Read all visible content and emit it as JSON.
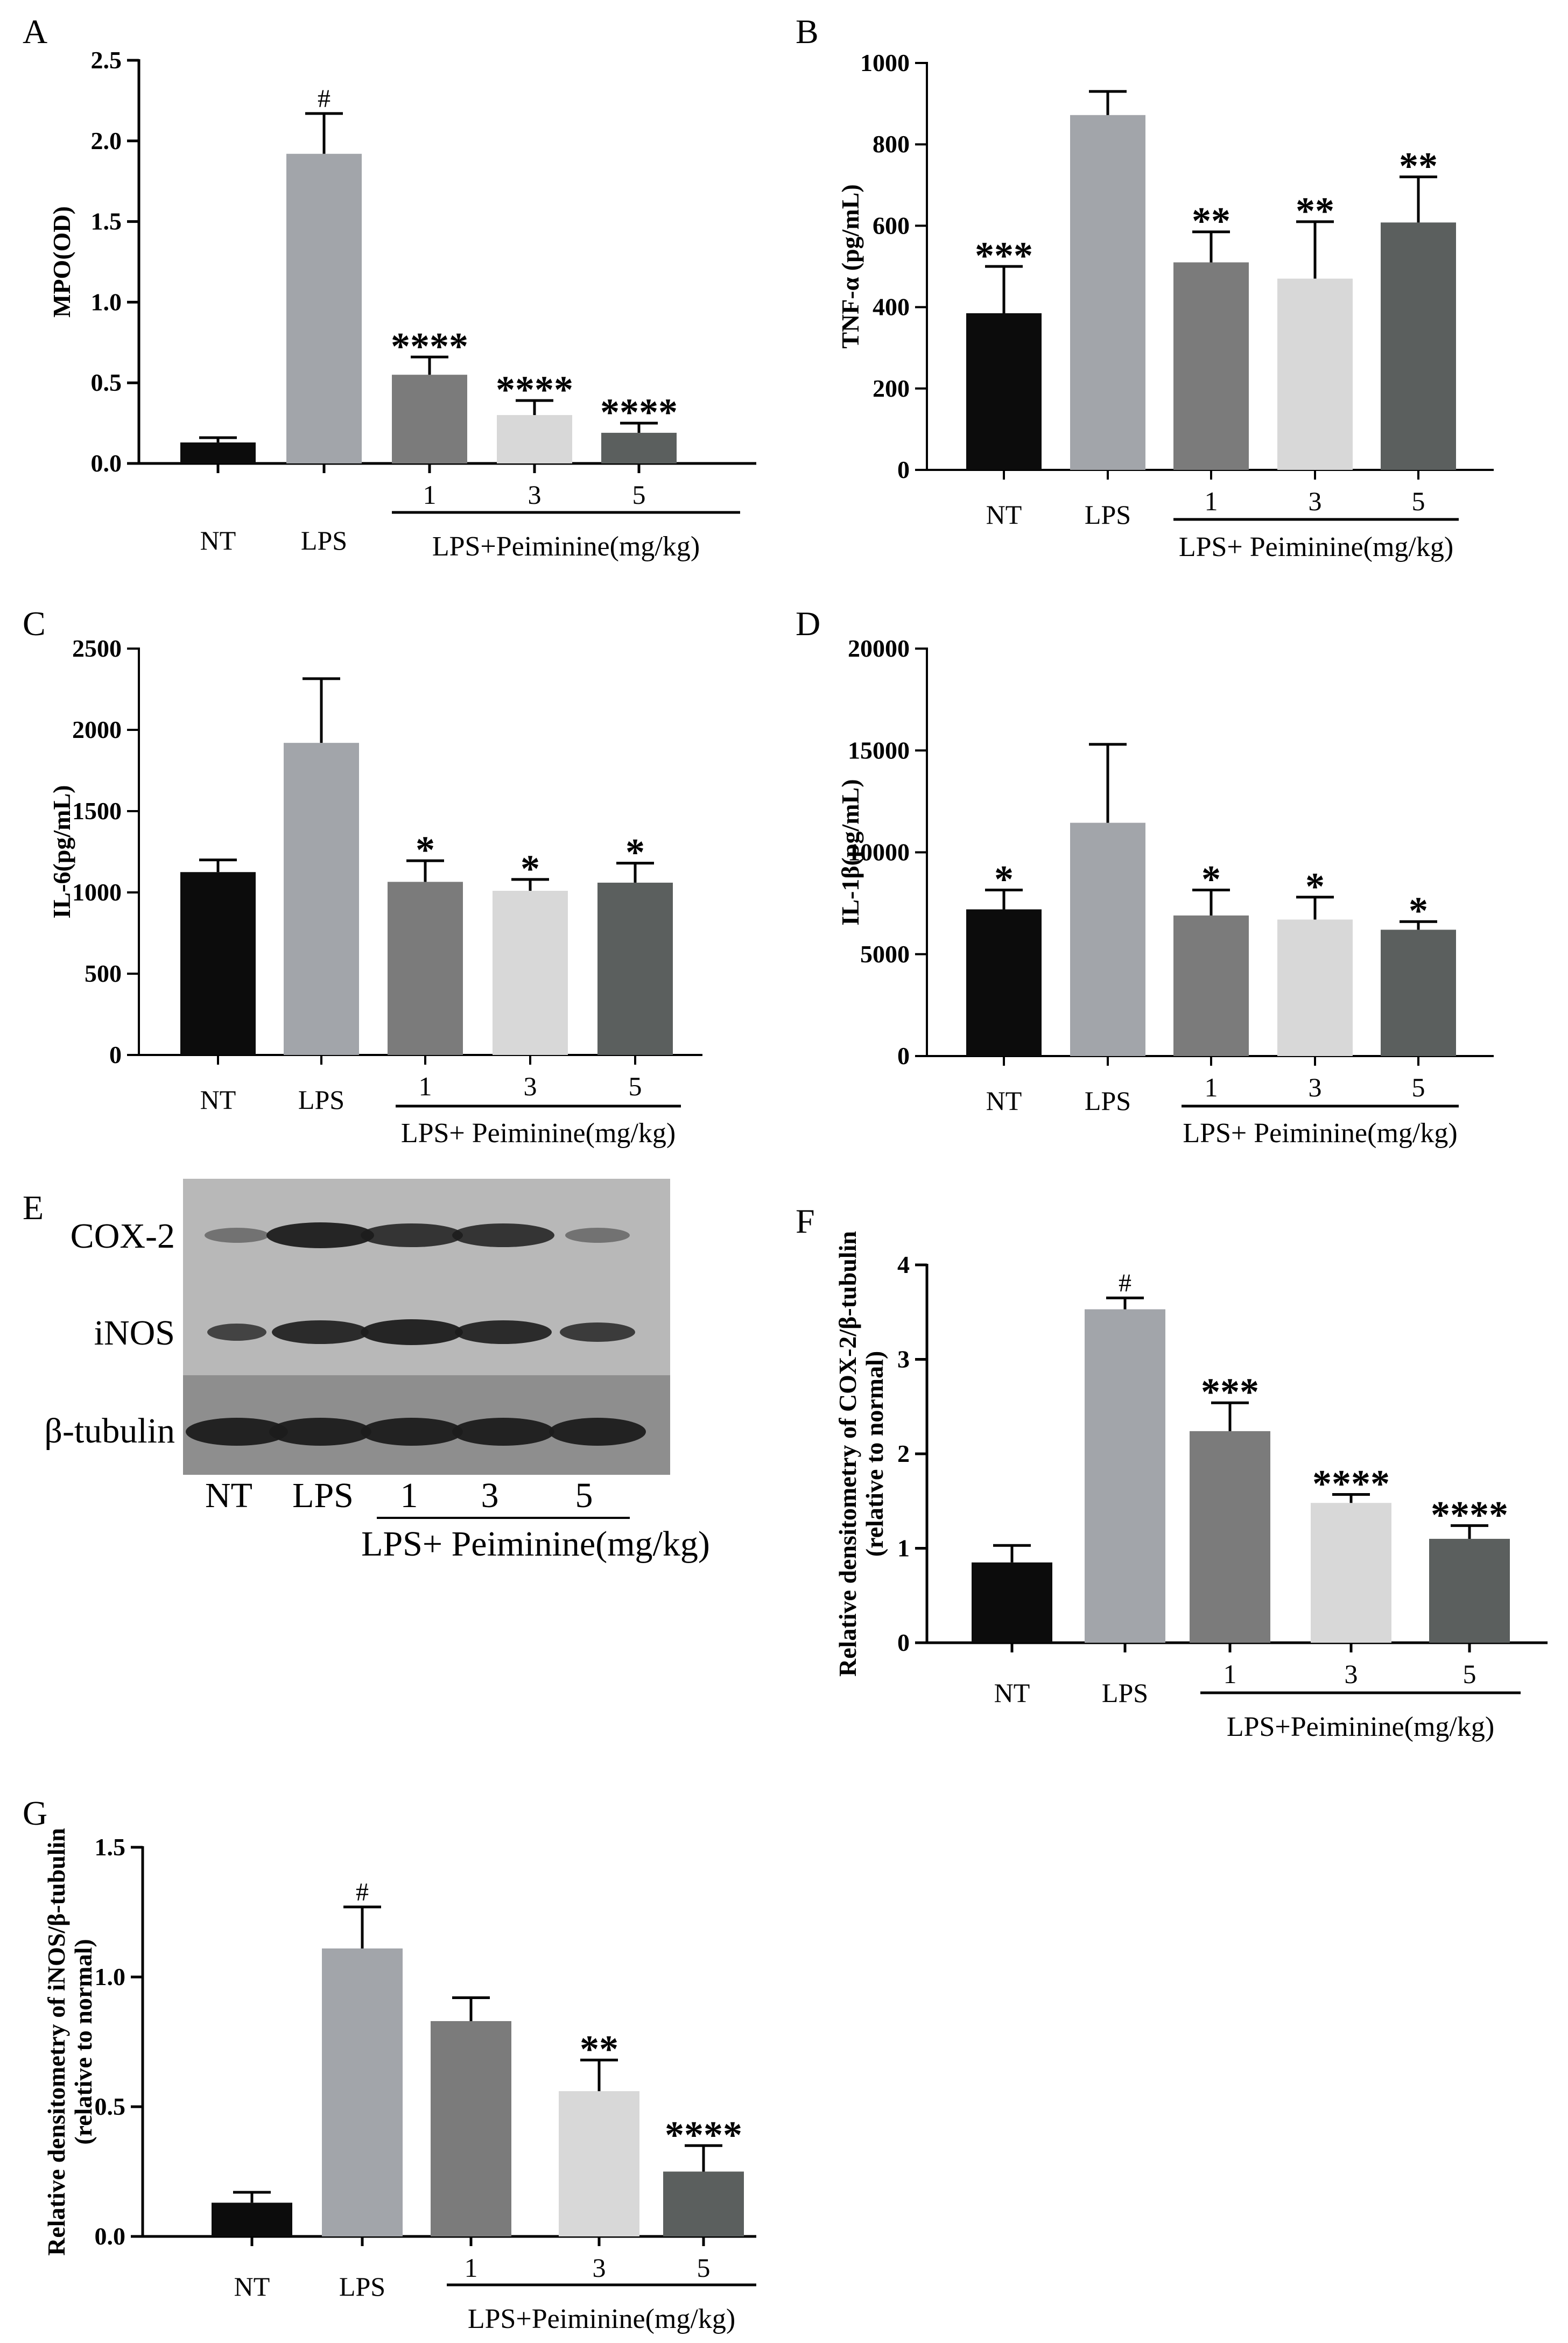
{
  "chart_data": [
    {
      "panel": "A",
      "type": "bar",
      "ylabel": "MPO(OD)",
      "ylim": [
        0,
        2.5
      ],
      "yticks": [
        "0.0",
        "0.5",
        "1.0",
        "1.5",
        "2.0",
        "2.5"
      ],
      "categories": [
        "NT",
        "LPS",
        "1",
        "3",
        "5"
      ],
      "group_label": "LPS+Peiminine(mg/kg)",
      "values": [
        0.13,
        1.92,
        0.55,
        0.3,
        0.19
      ],
      "errors": [
        0.03,
        0.25,
        0.11,
        0.09,
        0.06
      ],
      "annotations": [
        "",
        "#",
        "****",
        "****",
        "****"
      ],
      "colors": [
        "#0c0c0c",
        "#a2a5aa",
        "#7b7b7b",
        "#d8d8d8",
        "#5b5f5e"
      ]
    },
    {
      "panel": "B",
      "type": "bar",
      "ylabel": "TNF-α (pg/mL)",
      "ylim": [
        0,
        1000
      ],
      "yticks": [
        "0",
        "200",
        "400",
        "600",
        "800",
        "1000"
      ],
      "categories": [
        "NT",
        "LPS",
        "1",
        "3",
        "5"
      ],
      "group_label": "LPS+ Peiminine(mg/kg)",
      "values": [
        385,
        872,
        510,
        470,
        608
      ],
      "errors": [
        115,
        58,
        75,
        140,
        112
      ],
      "annotations": [
        "***",
        "",
        "**",
        "**",
        "**"
      ],
      "colors": [
        "#0c0c0c",
        "#a2a5aa",
        "#7b7b7b",
        "#d8d8d8",
        "#5b5f5e"
      ]
    },
    {
      "panel": "C",
      "type": "bar",
      "ylabel": "IL-6(pg/mL)",
      "ylim": [
        0,
        2500
      ],
      "yticks": [
        "0",
        "500",
        "1000",
        "1500",
        "2000",
        "2500"
      ],
      "categories": [
        "NT",
        "LPS",
        "1",
        "3",
        "5"
      ],
      "group_label": "LPS+ Peiminine(mg/kg)",
      "values": [
        1125,
        1920,
        1065,
        1010,
        1060
      ],
      "errors": [
        75,
        395,
        130,
        70,
        120
      ],
      "annotations": [
        "",
        "",
        "*",
        "*",
        "*"
      ],
      "colors": [
        "#0c0c0c",
        "#a2a5aa",
        "#7b7b7b",
        "#d8d8d8",
        "#5b5f5e"
      ]
    },
    {
      "panel": "D",
      "type": "bar",
      "ylabel": "IL-1β(pg/mL)",
      "ylim": [
        0,
        20000
      ],
      "yticks": [
        "0",
        "5000",
        "10000",
        "15000",
        "20000"
      ],
      "categories": [
        "NT",
        "LPS",
        "1",
        "3",
        "5"
      ],
      "group_label": "LPS+ Peiminine(mg/kg)",
      "values": [
        7200,
        11450,
        6900,
        6700,
        6200
      ],
      "errors": [
        950,
        3850,
        1250,
        1100,
        400
      ],
      "annotations": [
        "*",
        "",
        "*",
        "*",
        "*"
      ],
      "colors": [
        "#0c0c0c",
        "#a2a5aa",
        "#7b7b7b",
        "#d8d8d8",
        "#5b5f5e"
      ]
    },
    {
      "panel": "F",
      "type": "bar",
      "ylabel": [
        "Relative densitometry of COX-2/β-tubulin",
        "(relative to normal)"
      ],
      "ylim": [
        0,
        4
      ],
      "yticks": [
        "0",
        "1",
        "2",
        "3",
        "4"
      ],
      "categories": [
        "NT",
        "LPS",
        "1",
        "3",
        "5"
      ],
      "group_label": "LPS+Peiminine(mg/kg)",
      "values": [
        0.85,
        3.53,
        2.24,
        1.48,
        1.1
      ],
      "errors": [
        0.18,
        0.12,
        0.3,
        0.09,
        0.14
      ],
      "annotations": [
        "",
        "#",
        "***",
        "****",
        "****"
      ],
      "colors": [
        "#0c0c0c",
        "#a2a5aa",
        "#7b7b7b",
        "#d8d8d8",
        "#5b5f5e"
      ]
    },
    {
      "panel": "G",
      "type": "bar",
      "ylabel": [
        "Relative densitometry of iNOS/β-tubulin",
        "(relative to normal)"
      ],
      "ylim": [
        0,
        1.5
      ],
      "yticks": [
        "0.0",
        "0.5",
        "1.0",
        "1.5"
      ],
      "categories": [
        "NT",
        "LPS",
        "1",
        "3",
        "5"
      ],
      "group_label": "LPS+Peiminine(mg/kg)",
      "values": [
        0.13,
        1.11,
        0.83,
        0.56,
        0.25
      ],
      "errors": [
        0.04,
        0.16,
        0.09,
        0.12,
        0.1
      ],
      "annotations": [
        "",
        "#",
        "",
        "**",
        "****"
      ],
      "colors": [
        "#0c0c0c",
        "#a2a5aa",
        "#7b7b7b",
        "#d8d8d8",
        "#5b5f5e"
      ]
    }
  ],
  "western_blot": {
    "panel": "E",
    "proteins": [
      "COX-2",
      "iNOS",
      "β-tubulin"
    ],
    "lanes": [
      "NT",
      "LPS",
      "1",
      "3",
      "5"
    ],
    "group_label": "LPS+ Peiminine(mg/kg)"
  }
}
